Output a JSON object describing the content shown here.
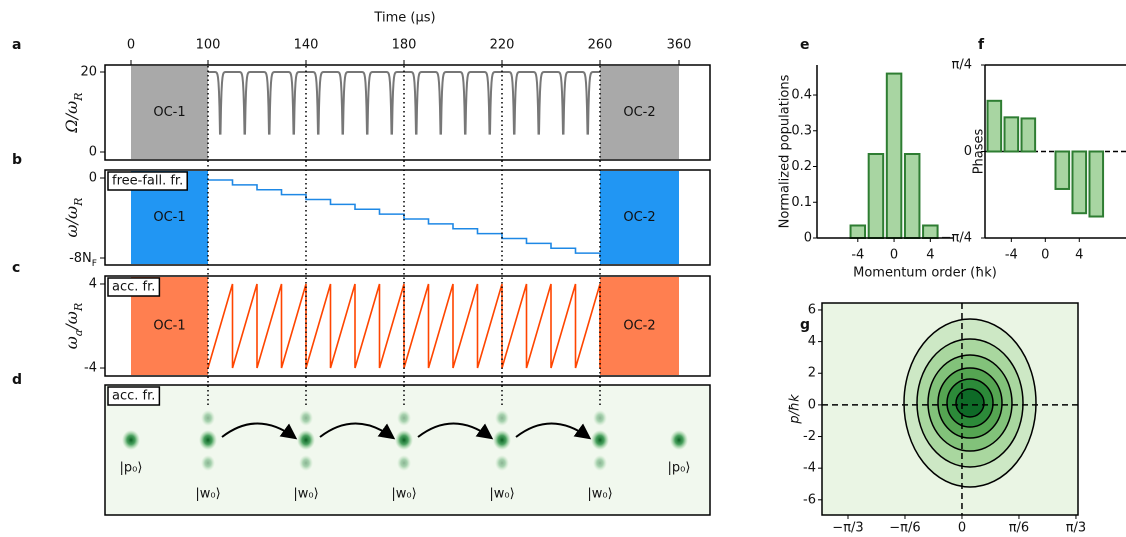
{
  "chart_data": [
    {
      "type": "timeline",
      "panel": "a",
      "xlabel": "Time (μs)",
      "xticks": [
        0,
        100,
        140,
        180,
        220,
        260,
        360
      ],
      "ylabel": [
        "Ω/ω",
        "R"
      ],
      "ylim": [
        -2,
        21.75
      ],
      "yticks": [
        0,
        20
      ],
      "segments": [
        "OC-1",
        "OC-2"
      ],
      "color": "#777777",
      "segment_color": "#a9a9a9"
    },
    {
      "type": "timeline",
      "panel": "b",
      "inset_label": "free-fall. fr.",
      "ylabel": [
        "ω/ω",
        "R"
      ],
      "ylim": [
        -8.7,
        0.8
      ],
      "yticks": [
        0,
        {
          "value": -8,
          "label": [
            "-8N",
            "F"
          ]
        }
      ],
      "segments": [
        "OC-1",
        "OC-2"
      ],
      "color": "#1e88e5",
      "segment_color": "#2196f3"
    },
    {
      "type": "timeline",
      "panel": "c",
      "inset_label": "acc. fr.",
      "ylabel": [
        "ω",
        "a",
        "/ω",
        "R"
      ],
      "ylim": [
        -4.76,
        4.76
      ],
      "yticks": [
        4,
        -4
      ],
      "segments": [
        "OC-1",
        "OC-2"
      ],
      "color": "#ff4500",
      "segment_color": "#ff7f50"
    },
    {
      "type": "images",
      "panel": "d",
      "inset_label": "acc. fr.",
      "labels": [
        "|p₀⟩",
        "|w₀⟩",
        "|w₀⟩",
        "|w₀⟩",
        "|w₀⟩",
        "|w₀⟩",
        "|p₀⟩"
      ]
    },
    {
      "type": "bar",
      "panel": "e",
      "ylabel": "Normalized populations",
      "xlabel": "Momentum order (ħk)",
      "x": [
        -4,
        -2,
        0,
        2,
        4
      ],
      "values": [
        0.035,
        0.235,
        0.46,
        0.235,
        0.035
      ],
      "xlim": [
        -8.5,
        6.5
      ],
      "ylim": [
        0,
        0.484
      ],
      "xticks": [
        -4,
        0,
        4
      ],
      "yticks": [
        0,
        0.1,
        0.2,
        0.3,
        0.4
      ],
      "color": "#a8d5a2",
      "edgecolor": "#2e7d32"
    },
    {
      "type": "bar",
      "panel": "f",
      "ylabel": "Phases",
      "x": [
        -6,
        -4,
        -2,
        2,
        4,
        6
      ],
      "values": [
        0.46,
        0.31,
        0.3,
        -0.34,
        -0.56,
        -0.59
      ],
      "xlim": [
        -7.1,
        9.5
      ],
      "ylim": [
        -0.785,
        0.785
      ],
      "xticks": [
        -4,
        0,
        4
      ],
      "yticks": [
        {
          "value": 0.785,
          "label": "π/4"
        },
        0,
        {
          "value": -0.785,
          "label": "−π/4"
        }
      ],
      "color": "#a8d5a2",
      "edgecolor": "#2e7d32"
    },
    {
      "type": "contour",
      "panel": "g",
      "ylabel": "p/ħk",
      "xlim": [
        -1.286,
        1.066
      ],
      "ylim": [
        -6.96,
        6.44
      ],
      "yticks": [
        -6,
        -4,
        -2,
        0,
        2,
        4,
        6
      ],
      "xticks": [
        {
          "value": -1.0472,
          "label": "−π/3"
        },
        {
          "value": -0.5236,
          "label": "−π/6"
        },
        0,
        {
          "value": 0.5236,
          "label": "π/6"
        },
        {
          "value": 1.0472,
          "label": "π/3"
        }
      ]
    }
  ]
}
